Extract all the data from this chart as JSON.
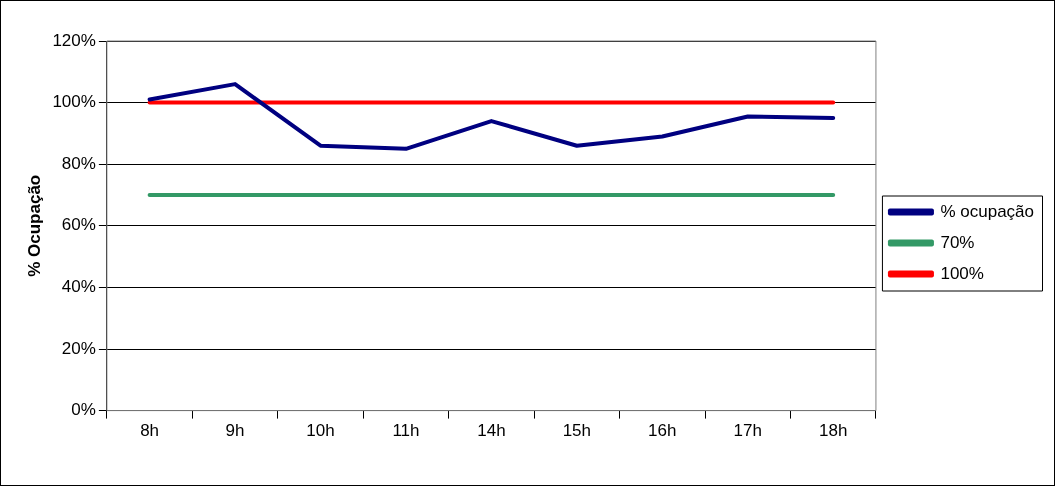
{
  "chart_data": {
    "type": "line",
    "ylabel": "% Ocupação",
    "categories": [
      "8h",
      "9h",
      "10h",
      "11h",
      "14h",
      "15h",
      "16h",
      "17h",
      "18h"
    ],
    "series": [
      {
        "name": "% ocupação",
        "color": "#000080",
        "values": [
          101,
          106,
          86,
          85,
          94,
          86,
          89,
          95.5,
          95
        ]
      },
      {
        "name": "70%",
        "color": "#339966",
        "values": [
          70,
          70,
          70,
          70,
          70,
          70,
          70,
          70,
          70
        ]
      },
      {
        "name": "100%",
        "color": "#ff0000",
        "values": [
          100,
          100,
          100,
          100,
          100,
          100,
          100,
          100,
          100
        ]
      }
    ],
    "ylim": [
      0,
      120
    ],
    "yticks": [
      {
        "value": 0,
        "label": "0%"
      },
      {
        "value": 20,
        "label": "20%"
      },
      {
        "value": 40,
        "label": "40%"
      },
      {
        "value": 60,
        "label": "60%"
      },
      {
        "value": 80,
        "label": "80%"
      },
      {
        "value": 100,
        "label": "100%"
      },
      {
        "value": 120,
        "label": "120%"
      }
    ],
    "grid": "y",
    "legend": "right",
    "marker": "none",
    "line_style": "solid"
  }
}
